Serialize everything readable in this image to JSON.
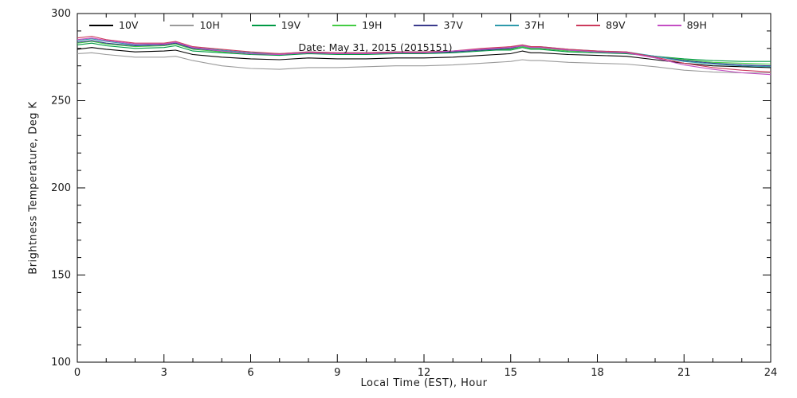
{
  "chart_data": {
    "type": "line",
    "title": "",
    "xlabel": "Local Time (EST), Hour",
    "ylabel": "Brightness Temperature, Deg K",
    "annotation": "Date: May 31, 2015 (2015151)",
    "xlim": [
      0,
      24
    ],
    "ylim": [
      100,
      300
    ],
    "xticks": [
      0,
      3,
      6,
      9,
      12,
      15,
      18,
      21,
      24
    ],
    "yticks": [
      100,
      150,
      200,
      250,
      300
    ],
    "x_minor_step": 1,
    "y_minor_step": 10,
    "grid": false,
    "legend_position": "top-inside",
    "axis_color": "#000000",
    "text_color": "#1a1a1a",
    "x": [
      0,
      0.5,
      1,
      2,
      3,
      3.4,
      4,
      5,
      6,
      7,
      8,
      9,
      10,
      11,
      12,
      13,
      14,
      14.5,
      15,
      15.4,
      15.7,
      16,
      17,
      18,
      19,
      20,
      21,
      22,
      23,
      24
    ],
    "series": [
      {
        "name": "10V",
        "color": "#000000",
        "values": [
          279.5,
          280.5,
          279.5,
          278.0,
          278.5,
          279.0,
          276.5,
          275.0,
          274.0,
          273.5,
          274.5,
          274.0,
          274.0,
          274.5,
          274.5,
          275.0,
          276.0,
          276.5,
          277.0,
          278.5,
          277.5,
          277.5,
          276.5,
          276.0,
          275.5,
          273.5,
          271.5,
          270.0,
          269.5,
          269.0
        ]
      },
      {
        "name": "10H",
        "color": "#9a9a9a",
        "values": [
          277.0,
          277.5,
          276.5,
          275.0,
          275.0,
          275.5,
          273.0,
          270.0,
          268.5,
          268.0,
          269.0,
          269.0,
          269.5,
          270.0,
          270.0,
          270.5,
          271.5,
          272.0,
          272.5,
          273.5,
          273.0,
          273.0,
          272.0,
          271.5,
          271.0,
          269.5,
          267.5,
          266.5,
          266.0,
          266.0
        ]
      },
      {
        "name": "19V",
        "color": "#009944",
        "values": [
          282.0,
          283.0,
          281.5,
          280.0,
          280.5,
          281.5,
          278.5,
          277.5,
          276.5,
          276.0,
          277.0,
          276.5,
          276.5,
          277.0,
          277.0,
          277.5,
          278.5,
          279.0,
          279.0,
          280.5,
          279.5,
          279.5,
          278.0,
          277.5,
          277.0,
          275.5,
          274.0,
          273.0,
          272.5,
          272.5
        ]
      },
      {
        "name": "19H",
        "color": "#44cc44",
        "values": [
          283.0,
          284.0,
          282.5,
          281.0,
          281.5,
          282.5,
          279.5,
          278.0,
          277.0,
          276.5,
          277.5,
          277.0,
          277.0,
          277.5,
          277.5,
          278.0,
          279.0,
          279.5,
          279.5,
          281.0,
          280.0,
          280.0,
          278.5,
          278.0,
          277.5,
          275.5,
          273.5,
          272.0,
          271.5,
          271.0
        ]
      },
      {
        "name": "37V",
        "color": "#3a3a8c",
        "values": [
          283.5,
          284.5,
          283.0,
          281.5,
          282.0,
          283.0,
          280.0,
          278.5,
          277.0,
          276.5,
          277.5,
          277.0,
          277.0,
          277.5,
          277.5,
          278.0,
          279.0,
          279.5,
          280.0,
          281.5,
          280.5,
          280.5,
          279.0,
          278.0,
          277.5,
          275.5,
          273.0,
          271.5,
          270.5,
          270.0
        ]
      },
      {
        "name": "37H",
        "color": "#2e9aab",
        "values": [
          284.5,
          285.5,
          284.0,
          282.0,
          282.5,
          283.5,
          280.5,
          279.0,
          277.5,
          277.0,
          278.0,
          277.5,
          277.5,
          278.0,
          278.0,
          278.5,
          279.5,
          280.0,
          280.5,
          282.0,
          281.0,
          281.0,
          279.5,
          278.5,
          278.0,
          275.5,
          272.5,
          271.0,
          270.0,
          269.5
        ]
      },
      {
        "name": "89V",
        "color": "#cc3a5c",
        "values": [
          286.0,
          287.0,
          285.0,
          283.0,
          283.0,
          284.0,
          281.0,
          279.5,
          278.0,
          277.0,
          278.0,
          277.5,
          277.5,
          278.0,
          278.0,
          278.5,
          280.0,
          280.5,
          281.0,
          282.0,
          281.0,
          281.0,
          279.5,
          278.5,
          278.0,
          275.0,
          271.5,
          269.0,
          267.5,
          266.5
        ]
      },
      {
        "name": "89H",
        "color": "#c44ec4",
        "values": [
          285.0,
          286.0,
          284.5,
          282.5,
          282.5,
          283.5,
          280.5,
          278.5,
          277.0,
          276.5,
          277.5,
          277.0,
          277.0,
          277.5,
          277.5,
          278.5,
          279.5,
          280.0,
          280.5,
          281.5,
          280.5,
          280.5,
          279.0,
          278.0,
          277.5,
          274.5,
          270.5,
          268.0,
          266.0,
          265.0
        ]
      }
    ]
  }
}
